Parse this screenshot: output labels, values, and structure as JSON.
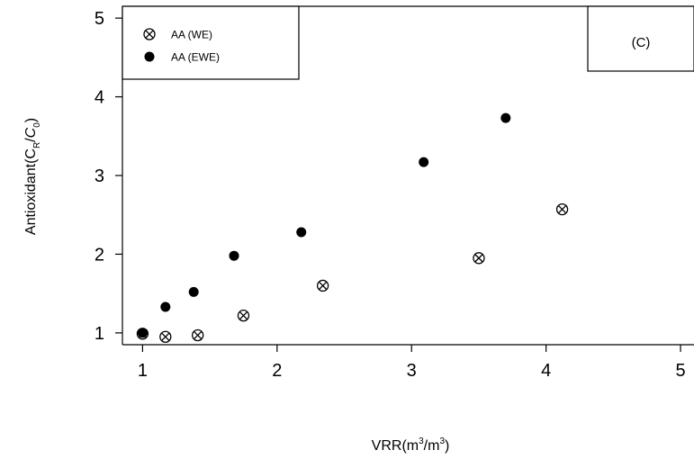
{
  "chart_data": {
    "type": "scatter",
    "xlabel": "VRR(m3/m3)",
    "ylabel": "Antioxidant(CR/C0)",
    "xlim": [
      0.85,
      5.1
    ],
    "ylim": [
      0.85,
      5.15
    ],
    "xticks": [
      1,
      2,
      3,
      4,
      5
    ],
    "yticks": [
      1,
      2,
      3,
      4,
      5
    ],
    "panel_label": "(C)",
    "legend_placement": "top-left",
    "series": [
      {
        "name": "AA (WE)",
        "marker": "circle-x",
        "x": [
          1.0,
          1.17,
          1.41,
          1.75,
          2.34,
          3.5,
          4.12
        ],
        "y": [
          0.99,
          0.95,
          0.97,
          1.22,
          1.6,
          1.95,
          2.57
        ]
      },
      {
        "name": "AA (EWE)",
        "marker": "filled-circle",
        "x": [
          1.0,
          1.17,
          1.38,
          1.68,
          2.18,
          3.09,
          3.7
        ],
        "y": [
          1.0,
          1.33,
          1.52,
          1.98,
          2.28,
          3.17,
          3.73
        ]
      }
    ]
  }
}
